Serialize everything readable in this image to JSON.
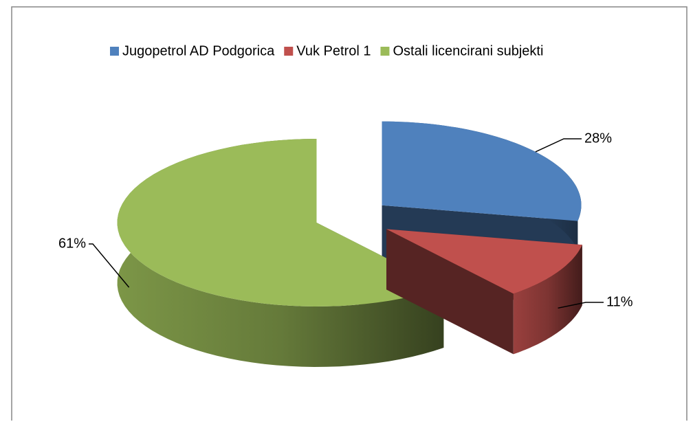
{
  "chart_data": {
    "type": "pie3d",
    "categories": [
      "Jugopetrol AD Podgorica",
      "Vuk Petrol 1",
      "Ostali licencirani subjekti"
    ],
    "values": [
      28,
      11,
      61
    ],
    "value_labels": [
      "28%",
      "11%",
      "61%"
    ],
    "colors": [
      "#4f81bd",
      "#c0504d",
      "#9bbb59"
    ],
    "legend": "top"
  }
}
